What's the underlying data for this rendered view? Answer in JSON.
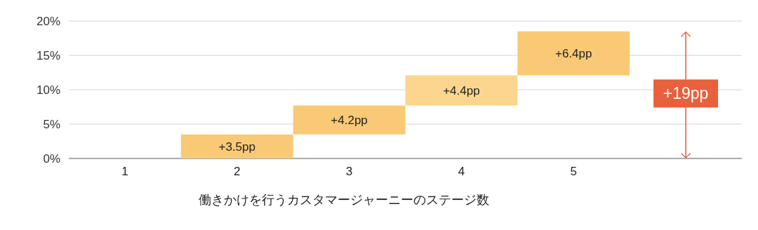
{
  "chart_data": {
    "type": "bar",
    "categories": [
      "1",
      "2",
      "3",
      "4",
      "5",
      null
    ],
    "base": [
      null,
      0,
      3.5,
      7.7,
      12.1,
      null
    ],
    "values": [
      null,
      3.5,
      4.2,
      4.4,
      6.4,
      null
    ],
    "colors": [
      null,
      "#f9c975",
      "#f9c975",
      "#fcd68e",
      "#f9c975",
      null
    ],
    "value_labels": [
      null,
      "+3.5pp",
      "+4.2pp",
      "+4.4pp",
      "+6.4pp",
      null
    ],
    "xlabel": "働きかけを行うカスタマージャーニーのステージ数",
    "ylim": [
      0,
      20
    ],
    "yticks": [
      {
        "value": 0,
        "label": "0%"
      },
      {
        "value": 5,
        "label": "5%"
      },
      {
        "value": 10,
        "label": "10%"
      },
      {
        "value": 15,
        "label": "15%"
      },
      {
        "value": 20,
        "label": "20%"
      }
    ],
    "grid": "y",
    "annotations": [
      "+19pp"
    ]
  }
}
